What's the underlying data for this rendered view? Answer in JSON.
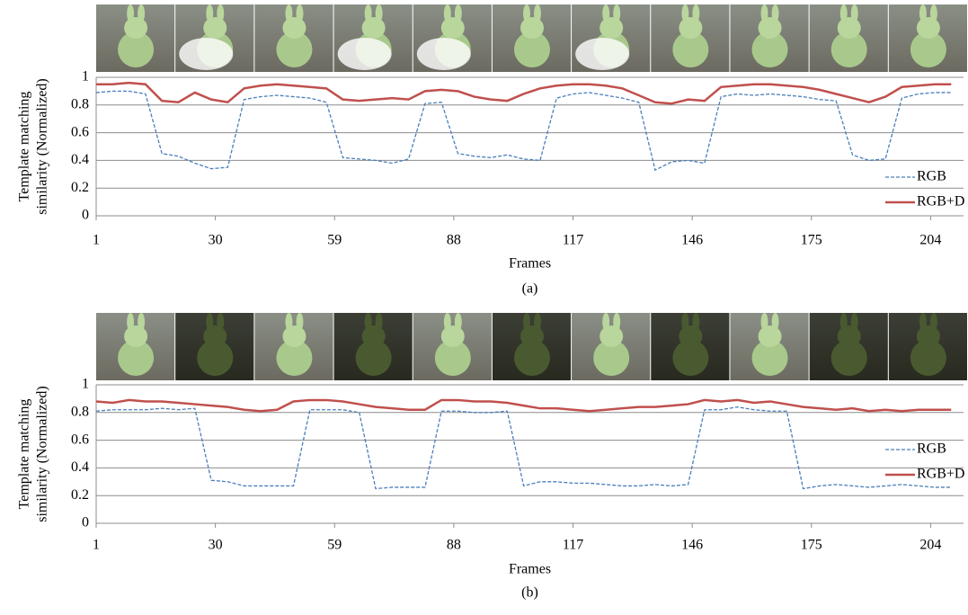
{
  "chart_data": [
    {
      "type": "line",
      "caption": "(a)",
      "xlabel": "Frames",
      "ylabel": [
        "Template matching",
        "similarity (Normalized)"
      ],
      "x": [
        1,
        5,
        9,
        13,
        17,
        21,
        25,
        29,
        33,
        37,
        41,
        45,
        49,
        53,
        57,
        61,
        65,
        69,
        73,
        77,
        81,
        85,
        89,
        93,
        97,
        101,
        105,
        109,
        113,
        117,
        121,
        125,
        129,
        133,
        137,
        141,
        145,
        149,
        153,
        157,
        161,
        165,
        169,
        173,
        177,
        181,
        185,
        189,
        193,
        197,
        201,
        205,
        209
      ],
      "xlim": [
        1,
        212
      ],
      "xticks": [
        1,
        30,
        59,
        88,
        117,
        146,
        175,
        204
      ],
      "ylim": [
        0,
        1
      ],
      "yticks": [
        0,
        0.2,
        0.4,
        0.6,
        0.8,
        1
      ],
      "grid": true,
      "legend": "lower right",
      "series": [
        {
          "name": "RGB",
          "color": "#4a7ebb",
          "style": "dashed",
          "values": [
            0.89,
            0.9,
            0.9,
            0.88,
            0.45,
            0.43,
            0.38,
            0.34,
            0.35,
            0.84,
            0.86,
            0.87,
            0.86,
            0.85,
            0.82,
            0.42,
            0.41,
            0.4,
            0.38,
            0.41,
            0.81,
            0.82,
            0.45,
            0.43,
            0.42,
            0.44,
            0.41,
            0.4,
            0.85,
            0.88,
            0.89,
            0.87,
            0.85,
            0.82,
            0.33,
            0.39,
            0.4,
            0.38,
            0.86,
            0.88,
            0.87,
            0.88,
            0.87,
            0.86,
            0.84,
            0.83,
            0.44,
            0.4,
            0.41,
            0.85,
            0.88,
            0.89,
            0.89
          ]
        },
        {
          "name": "RGB+D",
          "color": "#c0504d",
          "style": "solid",
          "values": [
            0.95,
            0.95,
            0.96,
            0.95,
            0.83,
            0.82,
            0.89,
            0.84,
            0.82,
            0.92,
            0.94,
            0.95,
            0.94,
            0.93,
            0.92,
            0.84,
            0.83,
            0.84,
            0.85,
            0.84,
            0.9,
            0.91,
            0.9,
            0.86,
            0.84,
            0.83,
            0.88,
            0.92,
            0.94,
            0.95,
            0.95,
            0.94,
            0.92,
            0.87,
            0.82,
            0.81,
            0.84,
            0.83,
            0.93,
            0.94,
            0.95,
            0.95,
            0.94,
            0.93,
            0.91,
            0.88,
            0.85,
            0.82,
            0.86,
            0.93,
            0.94,
            0.95,
            0.95
          ]
        }
      ]
    },
    {
      "type": "line",
      "caption": "(b)",
      "xlabel": "Frames",
      "ylabel": [
        "Template matching",
        "similarity (Normalized)"
      ],
      "x": [
        1,
        5,
        9,
        13,
        17,
        21,
        25,
        29,
        33,
        37,
        41,
        45,
        49,
        53,
        57,
        61,
        65,
        69,
        73,
        77,
        81,
        85,
        89,
        93,
        97,
        101,
        105,
        109,
        113,
        117,
        121,
        125,
        129,
        133,
        137,
        141,
        145,
        149,
        153,
        157,
        161,
        165,
        169,
        173,
        177,
        181,
        185,
        189,
        193,
        197,
        201,
        205,
        209
      ],
      "xlim": [
        1,
        212
      ],
      "xticks": [
        1,
        30,
        59,
        88,
        117,
        146,
        175,
        204
      ],
      "ylim": [
        0,
        1
      ],
      "yticks": [
        0,
        0.2,
        0.4,
        0.6,
        0.8,
        1
      ],
      "grid": true,
      "legend": "right",
      "series": [
        {
          "name": "RGB",
          "color": "#4a7ebb",
          "style": "dashed",
          "values": [
            0.81,
            0.82,
            0.82,
            0.82,
            0.83,
            0.82,
            0.83,
            0.31,
            0.3,
            0.27,
            0.27,
            0.27,
            0.27,
            0.82,
            0.82,
            0.82,
            0.8,
            0.25,
            0.26,
            0.26,
            0.26,
            0.81,
            0.81,
            0.8,
            0.8,
            0.81,
            0.27,
            0.3,
            0.3,
            0.29,
            0.29,
            0.28,
            0.27,
            0.27,
            0.28,
            0.27,
            0.28,
            0.82,
            0.82,
            0.84,
            0.82,
            0.81,
            0.81,
            0.25,
            0.27,
            0.28,
            0.27,
            0.26,
            0.27,
            0.28,
            0.27,
            0.26,
            0.26
          ]
        },
        {
          "name": "RGB+D",
          "color": "#c0504d",
          "style": "solid",
          "values": [
            0.88,
            0.87,
            0.89,
            0.88,
            0.88,
            0.87,
            0.86,
            0.85,
            0.84,
            0.82,
            0.81,
            0.82,
            0.88,
            0.89,
            0.89,
            0.88,
            0.86,
            0.84,
            0.83,
            0.82,
            0.82,
            0.89,
            0.89,
            0.88,
            0.88,
            0.87,
            0.85,
            0.83,
            0.83,
            0.82,
            0.81,
            0.82,
            0.83,
            0.84,
            0.84,
            0.85,
            0.86,
            0.89,
            0.88,
            0.89,
            0.87,
            0.88,
            0.86,
            0.84,
            0.83,
            0.82,
            0.83,
            0.81,
            0.82,
            0.81,
            0.82,
            0.82,
            0.82
          ]
        }
      ]
    }
  ]
}
